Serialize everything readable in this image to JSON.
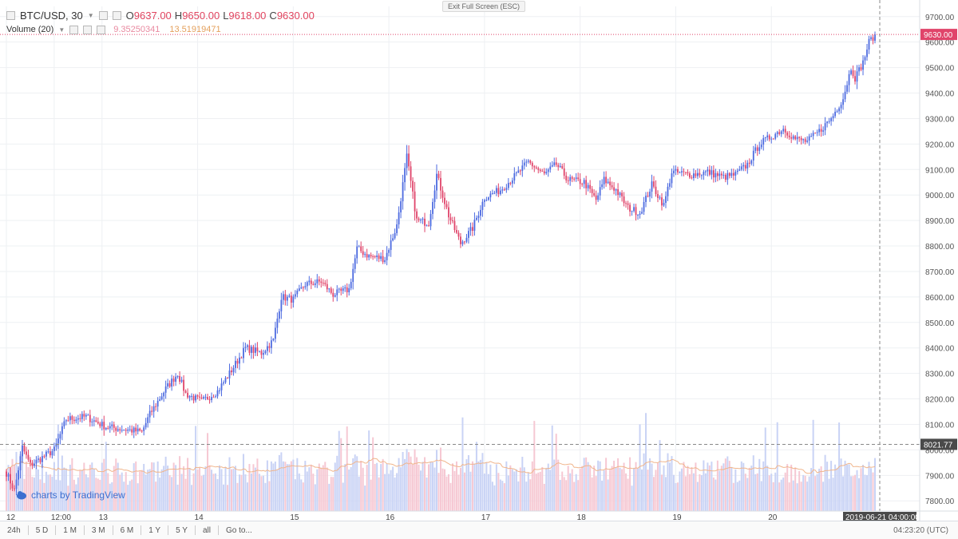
{
  "header": {
    "symbol": "BTC/USD, 30",
    "ohlc": [
      {
        "k": "O",
        "v": "9637.00"
      },
      {
        "k": "H",
        "v": "9650.00"
      },
      {
        "k": "L",
        "v": "9618.00"
      },
      {
        "k": "C",
        "v": "9630.00"
      }
    ],
    "volume_label": "Volume (20)",
    "volume_values": [
      "9.35250341",
      "13.51919471"
    ]
  },
  "exit_fullscreen": "Exit Full Screen (ESC)",
  "brand": "charts by TradingView",
  "timeframes": [
    "24h",
    "5 D",
    "1 M",
    "3 M",
    "6 M",
    "1 Y",
    "5 Y",
    "all",
    "Go to..."
  ],
  "clock": "04:23:20 (UTC)",
  "colors": {
    "up": "#4c6ae0",
    "down": "#e0446a",
    "up_vol": "#c9d3f5",
    "down_vol": "#f6c8d3"
  },
  "chart_data": {
    "type": "candlestick",
    "price_ticks": [
      "9700.00",
      "9600.00",
      "9500.00",
      "9400.00",
      "9300.00",
      "9200.00",
      "9100.00",
      "9000.00",
      "8900.00",
      "8800.00",
      "8700.00",
      "8600.00",
      "8500.00",
      "8400.00",
      "8300.00",
      "8200.00",
      "8100.00",
      "8000.00",
      "7900.00",
      "7800.00"
    ],
    "ylim": [
      7760,
      9740
    ],
    "time_ticks": [
      "12",
      "12:00",
      "13",
      "14",
      "15",
      "16",
      "17",
      "18",
      "19",
      "20"
    ],
    "last_price_label": "9630.00",
    "crosshair_price_label": "8021.77",
    "crosshair_time_label": "2019-06-21 04:00:00",
    "series": [
      {
        "name": "close",
        "waypoints": [
          [
            0,
            7910
          ],
          [
            4,
            7840
          ],
          [
            8,
            8010
          ],
          [
            12,
            7940
          ],
          [
            16,
            7960
          ],
          [
            24,
            8000
          ],
          [
            30,
            8120
          ],
          [
            40,
            8130
          ],
          [
            50,
            8090
          ],
          [
            60,
            8080
          ],
          [
            68,
            8070
          ],
          [
            72,
            8140
          ],
          [
            80,
            8240
          ],
          [
            86,
            8300
          ],
          [
            90,
            8220
          ],
          [
            98,
            8190
          ],
          [
            106,
            8230
          ],
          [
            112,
            8300
          ],
          [
            120,
            8400
          ],
          [
            128,
            8380
          ],
          [
            134,
            8430
          ],
          [
            138,
            8600
          ],
          [
            144,
            8590
          ],
          [
            150,
            8650
          ],
          [
            158,
            8660
          ],
          [
            164,
            8610
          ],
          [
            172,
            8630
          ],
          [
            176,
            8790
          ],
          [
            182,
            8760
          ],
          [
            190,
            8750
          ],
          [
            196,
            8880
          ],
          [
            201,
            9150
          ],
          [
            206,
            8900
          ],
          [
            212,
            8890
          ],
          [
            216,
            9080
          ],
          [
            222,
            8920
          ],
          [
            228,
            8810
          ],
          [
            234,
            8870
          ],
          [
            240,
            8990
          ],
          [
            248,
            9020
          ],
          [
            256,
            9080
          ],
          [
            262,
            9130
          ],
          [
            270,
            9080
          ],
          [
            276,
            9120
          ],
          [
            282,
            9060
          ],
          [
            290,
            9050
          ],
          [
            296,
            8980
          ],
          [
            300,
            9060
          ],
          [
            306,
            9020
          ],
          [
            312,
            8950
          ],
          [
            318,
            8930
          ],
          [
            324,
            9040
          ],
          [
            330,
            8960
          ],
          [
            334,
            9090
          ],
          [
            344,
            9080
          ],
          [
            352,
            9090
          ],
          [
            360,
            9070
          ],
          [
            366,
            9080
          ],
          [
            372,
            9120
          ],
          [
            378,
            9200
          ],
          [
            384,
            9230
          ],
          [
            390,
            9260
          ],
          [
            396,
            9220
          ],
          [
            402,
            9210
          ],
          [
            408,
            9250
          ],
          [
            414,
            9300
          ],
          [
            420,
            9380
          ],
          [
            424,
            9500
          ],
          [
            426,
            9460
          ],
          [
            430,
            9520
          ],
          [
            433,
            9600
          ],
          [
            436,
            9630
          ]
        ]
      }
    ]
  }
}
